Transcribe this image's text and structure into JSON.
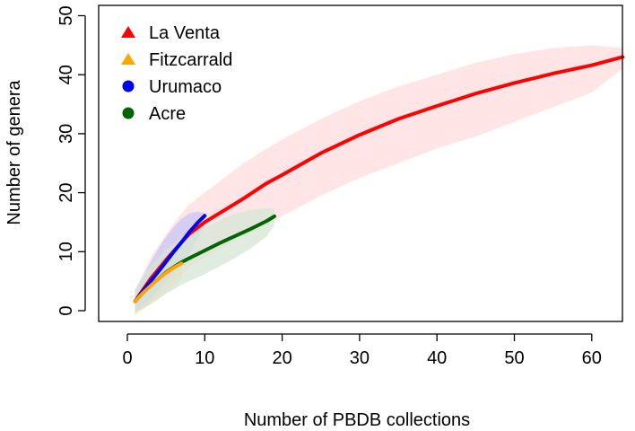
{
  "chart_data": {
    "type": "line",
    "xlabel": "Number of PBDB collections",
    "ylabel": "Number of genera",
    "xlim": [
      0,
      65
    ],
    "ylim": [
      -2,
      50
    ],
    "xticks": [
      0,
      10,
      20,
      30,
      40,
      50,
      60
    ],
    "yticks": [
      0,
      10,
      20,
      30,
      40,
      50
    ],
    "grid": false,
    "legend_position": "top-left",
    "series": [
      {
        "name": "La Venta",
        "color": "#ff0000",
        "band_color": "#ffdcdc",
        "marker": "triangle",
        "x": [
          1,
          3,
          5,
          7,
          8,
          10,
          12,
          15,
          18,
          20,
          25,
          30,
          35,
          40,
          45,
          50,
          55,
          60,
          64
        ],
        "y": [
          1.6,
          5.4,
          8.6,
          11.6,
          13.0,
          15.0,
          16.6,
          19.0,
          21.6,
          23.0,
          26.7,
          29.8,
          32.5,
          34.7,
          36.8,
          38.6,
          40.2,
          41.6,
          43.0
        ],
        "lower": [
          -0.5,
          1.5,
          4.0,
          6.0,
          7.5,
          9.0,
          10.5,
          12.5,
          14.5,
          16.0,
          19.5,
          22.5,
          25.0,
          27.5,
          29.5,
          32.0,
          34.5,
          37.0,
          41.0
        ],
        "upper": [
          3.5,
          9.0,
          13.0,
          16.5,
          18.0,
          20.0,
          22.0,
          25.0,
          27.5,
          29.0,
          32.5,
          35.5,
          38.0,
          40.0,
          42.0,
          43.5,
          44.5,
          45.0,
          44.5
        ]
      },
      {
        "name": "Fitzcarrald",
        "color": "#ffa500",
        "band_color": "#fde3b3",
        "marker": "triangle",
        "x": [
          1,
          2,
          3,
          4,
          5,
          6,
          7
        ],
        "y": [
          1.6,
          3.0,
          4.2,
          5.4,
          6.4,
          7.3,
          8.0
        ],
        "lower": [
          -0.7,
          0.2,
          1.0,
          2.0,
          3.0,
          4.0,
          5.5
        ],
        "upper": [
          3.5,
          5.5,
          7.0,
          8.5,
          9.5,
          10.2,
          10.5
        ]
      },
      {
        "name": "Urumaco",
        "color": "#0000ee",
        "band_color": "#c8c6f6",
        "marker": "circle",
        "x": [
          1,
          2,
          3,
          4,
          5,
          6,
          7,
          8,
          9,
          10
        ],
        "y": [
          1.6,
          3.3,
          5.0,
          6.6,
          8.3,
          10.0,
          11.6,
          13.3,
          14.8,
          16.1
        ],
        "lower": [
          -0.3,
          0.8,
          2.0,
          3.5,
          5.0,
          6.5,
          8.0,
          9.8,
          12.0,
          14.5
        ],
        "upper": [
          3.5,
          5.8,
          8.2,
          10.5,
          12.5,
          14.2,
          15.6,
          16.5,
          16.8,
          16.5
        ]
      },
      {
        "name": "Acre",
        "color": "#006400",
        "band_color": "#d6e6d6",
        "marker": "circle",
        "x": [
          1,
          2,
          3,
          4,
          5,
          6,
          7,
          8,
          10,
          12,
          14,
          16,
          18,
          19
        ],
        "y": [
          1.6,
          3.0,
          4.3,
          5.4,
          6.5,
          7.4,
          8.2,
          8.9,
          10.2,
          11.5,
          12.7,
          13.9,
          15.2,
          16.0
        ],
        "lower": [
          -0.3,
          0.4,
          1.2,
          2.0,
          2.9,
          3.6,
          4.4,
          5.0,
          6.2,
          7.6,
          9.0,
          10.6,
          12.6,
          14.6
        ],
        "upper": [
          3.5,
          5.8,
          7.6,
          9.0,
          10.3,
          11.4,
          12.3,
          13.0,
          14.2,
          15.4,
          16.5,
          17.1,
          17.4,
          17.3
        ]
      }
    ]
  }
}
